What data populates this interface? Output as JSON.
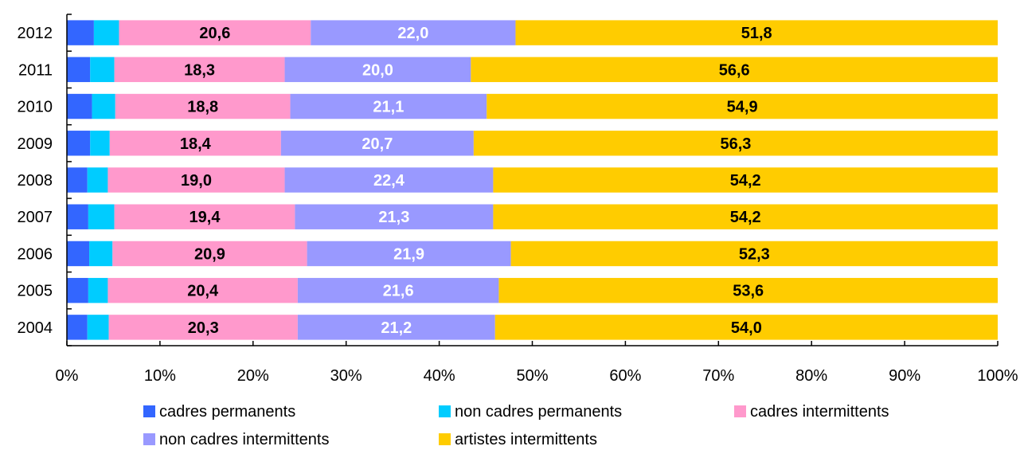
{
  "chart_data": {
    "type": "bar",
    "orientation": "horizontal",
    "stacked": "percent",
    "categories": [
      "2012",
      "2011",
      "2010",
      "2009",
      "2008",
      "2007",
      "2006",
      "2005",
      "2004"
    ],
    "x_ticks": [
      "0%",
      "10%",
      "20%",
      "30%",
      "40%",
      "50%",
      "60%",
      "70%",
      "80%",
      "90%",
      "100%"
    ],
    "xlim": [
      0,
      100
    ],
    "grid": false,
    "legend_position": "bottom",
    "series": [
      {
        "name": "cadres permanents",
        "color": "#3366ff",
        "values": [
          2.9,
          2.5,
          2.7,
          2.5,
          2.2,
          2.3,
          2.4,
          2.3,
          2.2
        ]
      },
      {
        "name": "non cadres permanents",
        "color": "#00ccff",
        "values": [
          2.7,
          2.6,
          2.5,
          2.1,
          2.2,
          2.8,
          2.5,
          2.1,
          2.3
        ]
      },
      {
        "name": "cadres intermittents",
        "color": "#ff99cc",
        "values": [
          20.6,
          18.3,
          18.8,
          18.4,
          19.0,
          19.4,
          20.9,
          20.4,
          20.3
        ],
        "labels": [
          "20,6",
          "18,3",
          "18,8",
          "18,4",
          "19,0",
          "19,4",
          "20,9",
          "20,4",
          "20,3"
        ],
        "label_color": "#000000"
      },
      {
        "name": "non cadres intermittents",
        "color": "#9999ff",
        "values": [
          22.0,
          20.0,
          21.1,
          20.7,
          22.4,
          21.3,
          21.9,
          21.6,
          21.2
        ],
        "labels": [
          "22,0",
          "20,0",
          "21,1",
          "20,7",
          "22,4",
          "21,3",
          "21,9",
          "21,6",
          "21,2"
        ],
        "label_color": "#ffffff"
      },
      {
        "name": "artistes intermittents",
        "color": "#ffcc00",
        "values": [
          51.8,
          56.6,
          54.9,
          56.3,
          54.2,
          54.2,
          52.3,
          53.6,
          54.0
        ],
        "labels": [
          "51,8",
          "56,6",
          "54,9",
          "56,3",
          "54,2",
          "54,2",
          "52,3",
          "53,6",
          "54,0"
        ],
        "label_color": "#000000"
      }
    ]
  }
}
